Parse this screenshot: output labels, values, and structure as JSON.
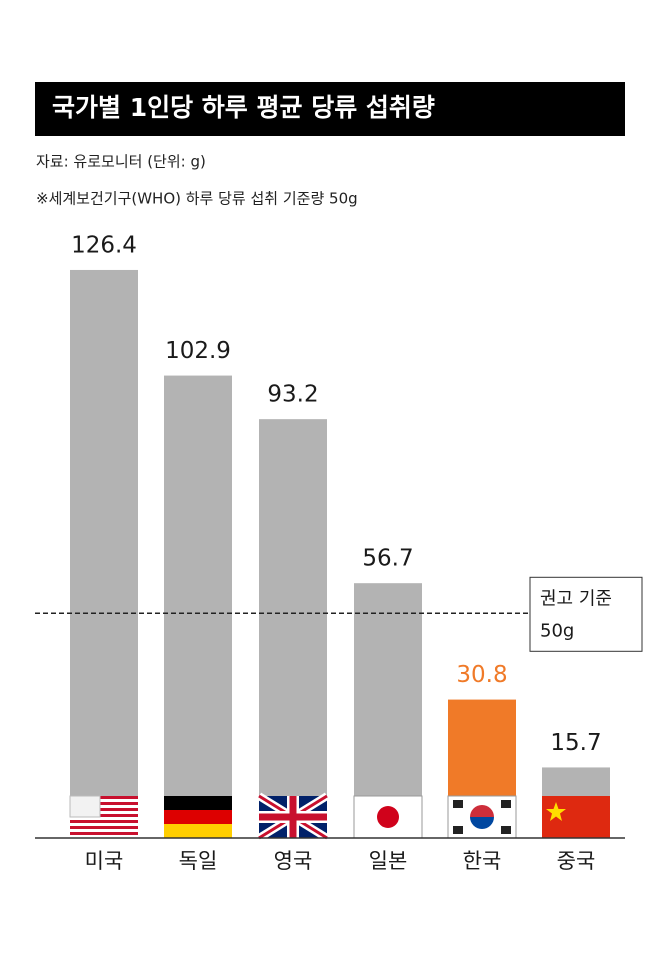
{
  "chart_data": {
    "type": "bar",
    "title": "국가별 1인당 하루 평균 당류 섭취량",
    "subtitle": "자료: 유로모니터 (단위: g)",
    "note": "※세계보건기구(WHO) 하루 당류 섭취 기준량 50g",
    "categories": [
      "미국",
      "독일",
      "영국",
      "일본",
      "한국",
      "중국"
    ],
    "values": [
      126.4,
      102.9,
      93.2,
      56.7,
      30.8,
      15.7
    ],
    "colors": [
      "#b3b3b3",
      "#b3b3b3",
      "#b3b3b3",
      "#b3b3b3",
      "#f07a28",
      "#b3b3b3"
    ],
    "reference_line": {
      "value": 50,
      "label": "권고 기준",
      "value_label": "50g"
    }
  }
}
